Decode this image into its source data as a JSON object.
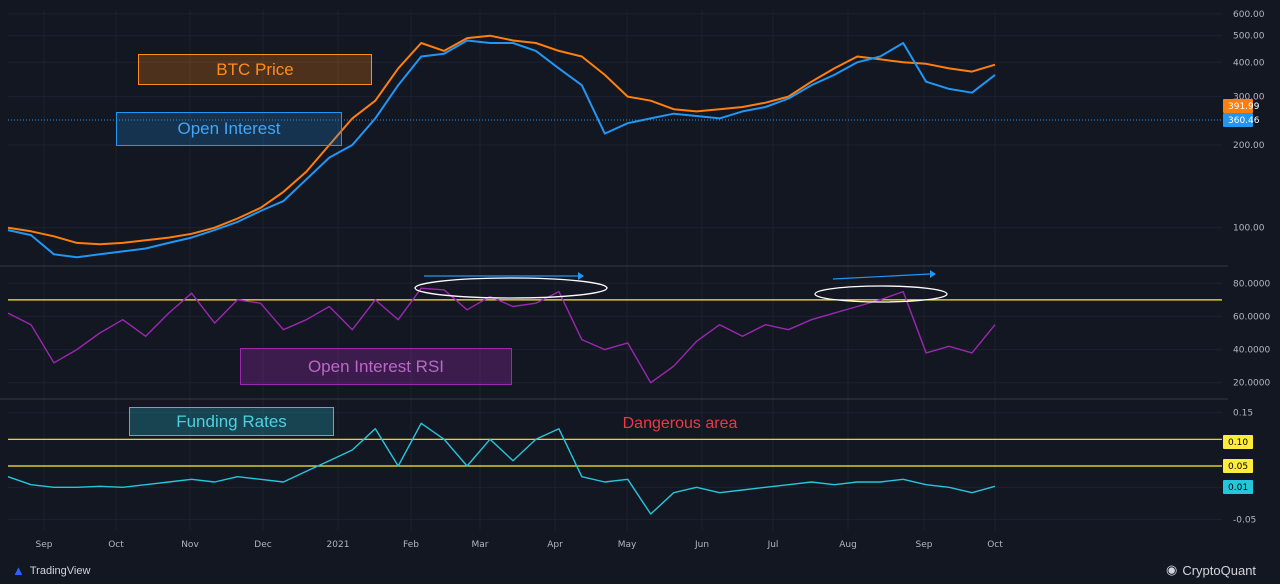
{
  "brand": {
    "left": "TradingView",
    "right": "CryptoQuant"
  },
  "colors": {
    "background": "#131722",
    "btc_price": "#ff7f0e",
    "open_interest": "#2196f3",
    "rsi": "#9c27b0",
    "funding": "#26c6da",
    "threshold": "#ffeb3b",
    "danger": "#f23645",
    "ellipse": "#ffffff"
  },
  "labels": {
    "btc_price": "BTC Price",
    "open_interest": "Open Interest",
    "oi_rsi": "Open Interest RSI",
    "funding_rates": "Funding Rates",
    "dangerous_area": "Dangerous area"
  },
  "price_tags": {
    "btc_price": "391.99",
    "open_interest": "360.46",
    "funding": "0.01",
    "level_010": "0.10",
    "level_005": "0.05"
  },
  "x_axis": {
    "ticks": [
      "Sep",
      "Oct",
      "Nov",
      "Dec",
      "2021",
      "Feb",
      "Mar",
      "Apr",
      "May",
      "Jun",
      "Jul",
      "Aug",
      "Sep",
      "Oct"
    ]
  },
  "chart_data": [
    {
      "type": "line",
      "scale": "log",
      "y_ticks": [
        "600.00",
        "500.00",
        "400.00",
        "300.00",
        "200.00",
        "100.00"
      ],
      "ylim": [
        75,
        620
      ],
      "series": [
        {
          "name": "BTC Price",
          "values": [
            100,
            97,
            93,
            88,
            87,
            88,
            90,
            92,
            95,
            100,
            108,
            118,
            135,
            160,
            200,
            250,
            290,
            380,
            470,
            440,
            490,
            500,
            480,
            470,
            440,
            420,
            360,
            300,
            290,
            270,
            265,
            270,
            275,
            285,
            300,
            340,
            380,
            420,
            410,
            400,
            395,
            380,
            370,
            392
          ]
        },
        {
          "name": "Open Interest",
          "values": [
            98,
            94,
            80,
            78,
            80,
            82,
            84,
            88,
            92,
            98,
            105,
            115,
            125,
            150,
            180,
            200,
            250,
            330,
            420,
            430,
            480,
            470,
            470,
            440,
            380,
            330,
            220,
            240,
            250,
            260,
            255,
            250,
            265,
            275,
            295,
            330,
            360,
            400,
            420,
            470,
            340,
            320,
            310,
            360
          ]
        }
      ]
    },
    {
      "type": "line",
      "y_ticks": [
        "80.0000",
        "60.0000",
        "40.0000",
        "20.0000"
      ],
      "ylim": [
        12,
        88
      ],
      "hlines": [
        70
      ],
      "series": [
        {
          "name": "Open Interest RSI",
          "values": [
            62,
            55,
            32,
            40,
            50,
            58,
            48,
            62,
            74,
            56,
            70,
            68,
            52,
            58,
            66,
            52,
            70,
            58,
            77,
            76,
            64,
            72,
            66,
            68,
            75,
            46,
            40,
            44,
            20,
            30,
            45,
            55,
            48,
            55,
            52,
            58,
            62,
            66,
            70,
            75,
            38,
            42,
            38,
            55
          ]
        }
      ]
    },
    {
      "type": "line",
      "y_ticks": [
        "0.15",
        "0.10",
        "0.05",
        "0.01",
        "-0.05"
      ],
      "ylim": [
        -0.07,
        0.17
      ],
      "hlines": [
        0.1,
        0.05
      ],
      "series": [
        {
          "name": "Funding Rates",
          "values": [
            0.03,
            0.015,
            0.01,
            0.01,
            0.012,
            0.01,
            0.015,
            0.02,
            0.025,
            0.02,
            0.03,
            0.025,
            0.02,
            0.04,
            0.06,
            0.08,
            0.12,
            0.05,
            0.13,
            0.1,
            0.05,
            0.1,
            0.06,
            0.1,
            0.12,
            0.03,
            0.02,
            0.025,
            -0.04,
            0.0,
            0.01,
            0.0,
            0.005,
            0.01,
            0.015,
            0.02,
            0.015,
            0.02,
            0.02,
            0.025,
            0.015,
            0.01,
            0.0,
            0.012
          ]
        }
      ]
    }
  ]
}
